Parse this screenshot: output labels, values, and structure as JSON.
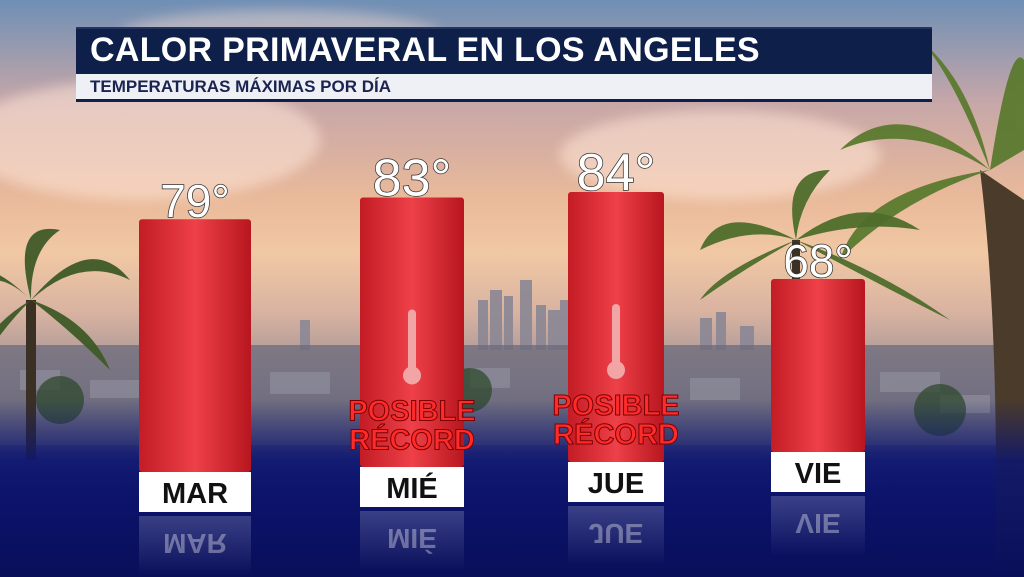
{
  "header": {
    "title": "CALOR PRIMAVERAL EN LOS ANGELES",
    "subtitle": "TEMPERATURAS MÁXIMAS POR DÍA"
  },
  "colors": {
    "bar": "#d9222b",
    "bar_highlight": "#f06068",
    "title_bg": "#0e1f4a",
    "subtitle_bg": "#eef0f6",
    "record_text": "#ff2b2b",
    "label_box": "#ffffff"
  },
  "annotations": {
    "record_text_line1": "POSIBLE",
    "record_text_line2": "RÉCORD",
    "record_icon": "thermometer-icon"
  },
  "chart_data": {
    "type": "bar",
    "title": "CALOR PRIMAVERAL EN LOS ANGELES",
    "subtitle": "TEMPERATURAS MÁXIMAS POR DÍA",
    "categories": [
      "MAR",
      "MIÉ",
      "JUE",
      "VIE"
    ],
    "values": [
      79,
      83,
      84,
      68
    ],
    "value_labels": [
      "79°",
      "83°",
      "84°",
      "68°"
    ],
    "record_flags": [
      false,
      true,
      true,
      false
    ],
    "unit": "°",
    "grid": false,
    "legend": "none"
  }
}
